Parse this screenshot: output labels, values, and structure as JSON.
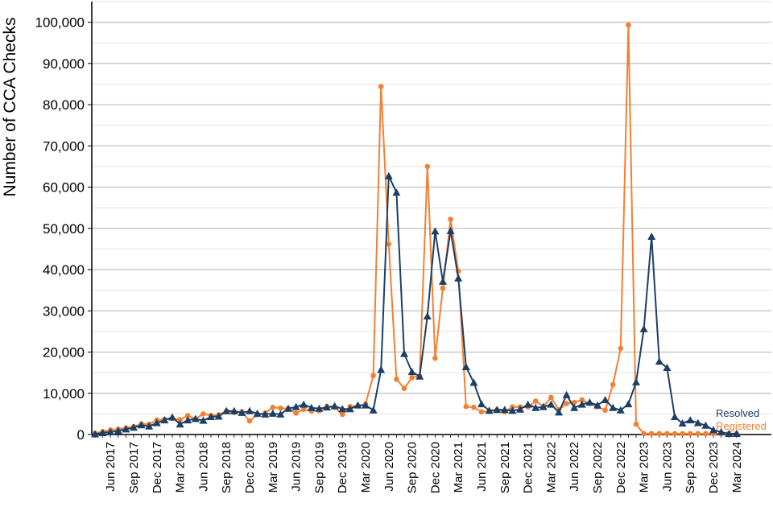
{
  "chart_data": {
    "type": "line",
    "title": "",
    "xlabel": "",
    "ylabel": "Number of CCA Checks",
    "ylim": [
      0,
      105000
    ],
    "yticks": [
      0,
      10000,
      20000,
      30000,
      40000,
      50000,
      60000,
      70000,
      80000,
      90000,
      100000
    ],
    "ytick_labels": [
      "0",
      "10,000",
      "20,000",
      "30,000",
      "40,000",
      "50,000",
      "60,000",
      "70,000",
      "80,000",
      "90,000",
      "100,000"
    ],
    "grid": true,
    "start_month": "2017-04",
    "months_count": 84,
    "xtick_labels": [
      "Jun 2017",
      "Sep 2017",
      "Dec 2017",
      "Mar 2018",
      "Jun 2018",
      "Sep 2018",
      "Dec 2018",
      "Mar 2019",
      "Jun 2019",
      "Sep 2019",
      "Dec 2019",
      "Mar 2020",
      "Jun 2020",
      "Sep 2020",
      "Dec 2020",
      "Mar 2021",
      "Jun 2021",
      "Sep 2021",
      "Dec 2021",
      "Mar 2022",
      "Jun 2022",
      "Sep 2022",
      "Dec 2022",
      "Mar 2023",
      "Jun 2023",
      "Sep 2023",
      "Dec 2023",
      "Mar 2024"
    ],
    "legend_position": "bottom-right, at line ends",
    "series": [
      {
        "name": "Registered",
        "color": "#f28032",
        "marker": "circle",
        "values": [
          300,
          700,
          1100,
          1300,
          1600,
          1900,
          2600,
          2500,
          3500,
          3700,
          3900,
          3600,
          4600,
          3800,
          5000,
          4600,
          4800,
          5700,
          5300,
          5500,
          3300,
          4800,
          5200,
          6600,
          6400,
          6300,
          5200,
          6100,
          5700,
          5800,
          6800,
          6600,
          4900,
          6800,
          6900,
          7400,
          14300,
          84400,
          46200,
          13400,
          11200,
          13800,
          14200,
          65000,
          18500,
          35500,
          52200,
          39600,
          6800,
          6600,
          5500,
          5600,
          6000,
          5500,
          6700,
          6700,
          6700,
          8100,
          6800,
          9000,
          6000,
          7500,
          7800,
          8400,
          7500,
          6700,
          5900,
          12100,
          20900,
          99300,
          2500,
          200,
          200,
          200,
          200,
          200,
          200,
          200,
          200,
          200,
          200,
          200,
          200,
          200
        ]
      },
      {
        "name": "Resolved",
        "color": "#1d3f66",
        "marker": "triangle",
        "values": [
          100,
          400,
          600,
          900,
          1300,
          1700,
          2300,
          2000,
          2800,
          3500,
          4200,
          2500,
          3500,
          3800,
          3400,
          4300,
          4400,
          5700,
          5700,
          5300,
          5700,
          5100,
          4900,
          5100,
          4900,
          6300,
          6700,
          7300,
          6500,
          6300,
          6600,
          6900,
          6200,
          6200,
          7100,
          7100,
          5900,
          15700,
          62700,
          58700,
          19600,
          15200,
          14100,
          28700,
          49300,
          37100,
          49400,
          37900,
          16400,
          12600,
          7400,
          5800,
          6000,
          6000,
          5800,
          6100,
          7300,
          6500,
          6700,
          7300,
          5400,
          9600,
          6500,
          7300,
          7800,
          7100,
          8400,
          6500,
          5900,
          7400,
          12700,
          25600,
          48000,
          17700,
          16200,
          4300,
          2700,
          3500,
          2800,
          2200,
          1100,
          600,
          200,
          200
        ]
      }
    ]
  }
}
